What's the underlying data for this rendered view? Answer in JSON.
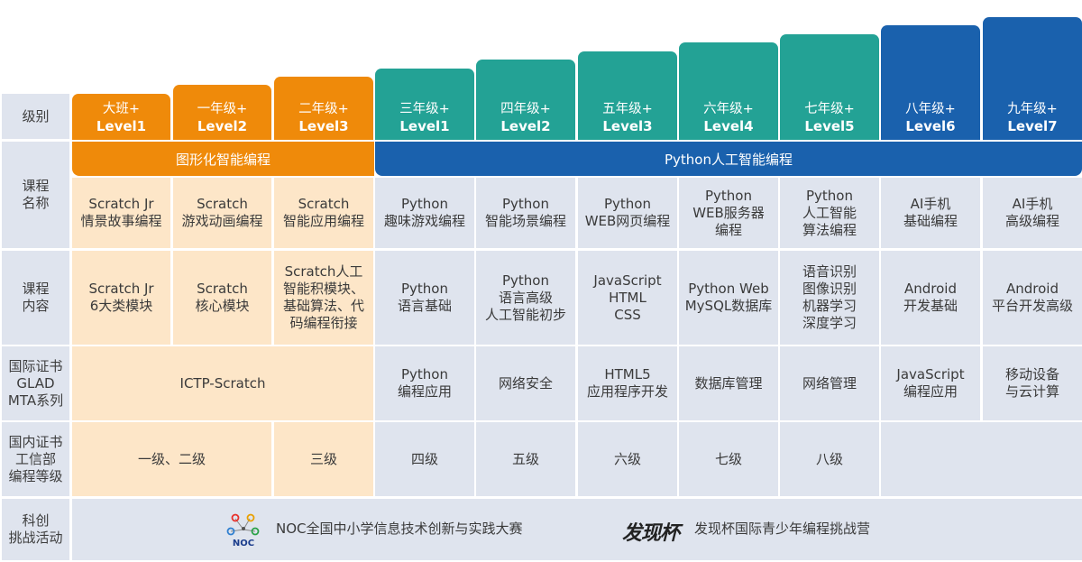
{
  "row_labels": {
    "level": "级别",
    "course_name": "课程\n名称",
    "course_content": "课程\n内容",
    "intl_cert": "国际证书\nGLAD\nMTA系列",
    "domestic_cert": "国内证书\n工信部\n编程等级",
    "challenge": "科创\n挑战活动"
  },
  "grades": [
    {
      "grade": "大班+",
      "level": "Level1"
    },
    {
      "grade": "一年级+",
      "level": "Level2"
    },
    {
      "grade": "二年级+",
      "level": "Level3"
    },
    {
      "grade": "三年级+",
      "level": "Level1"
    },
    {
      "grade": "四年级+",
      "level": "Level2"
    },
    {
      "grade": "五年级+",
      "level": "Level3"
    },
    {
      "grade": "六年级+",
      "level": "Level4"
    },
    {
      "grade": "七年级+",
      "level": "Level5"
    },
    {
      "grade": "八年级+",
      "level": "Level6"
    },
    {
      "grade": "九年级+",
      "level": "Level7"
    }
  ],
  "tracks": {
    "graphical": "图形化智能编程",
    "python": "Python人工智能编程"
  },
  "course_names": [
    "Scratch Jr\n情景故事编程",
    "Scratch\n游戏动画编程",
    "Scratch\n智能应用编程",
    "Python\n趣味游戏编程",
    "Python\n智能场景编程",
    "Python\nWEB网页编程",
    "Python\nWEB服务器\n编程",
    "Python\n人工智能\n算法编程",
    "AI手机\n基础编程",
    "AI手机\n高级编程"
  ],
  "course_contents": [
    "Scratch Jr\n6大类模块",
    "Scratch\n核心模块",
    "Scratch人工\n智能积模块、\n基础算法、代\n码编程衔接",
    "Python\n语言基础",
    "Python\n语言高级\n人工智能初步",
    "JavaScript\nHTML\nCSS",
    "Python Web\nMySQL数据库",
    "语音识别\n图像识别\n机器学习\n深度学习",
    "Android\n开发基础",
    "Android\n平台开发高级"
  ],
  "intl_certs": {
    "scratch": "ICTP-Scratch",
    "items": [
      "Python\n编程应用",
      "网络安全",
      "HTML5\n应用程序开发",
      "数据库管理",
      "网络管理",
      "JavaScript\n编程应用",
      "移动设备\n与云计算"
    ]
  },
  "domestic_certs": {
    "level12": "一级、二级",
    "items": [
      "三级",
      "四级",
      "五级",
      "六级",
      "七级",
      "八级"
    ]
  },
  "challenges": {
    "noc_logo_text": "NOC",
    "noc": "NOC全国中小学信息技术创新与实践大赛",
    "faxian_logo_text": "发现杯",
    "faxian": "发现杯国际青少年编程挑战营"
  },
  "colors": {
    "orange": "#ef8a0a",
    "teal": "#23a295",
    "blue": "#1a61ad",
    "peach": "#fde6c8",
    "grey": "#dfe4ee"
  }
}
